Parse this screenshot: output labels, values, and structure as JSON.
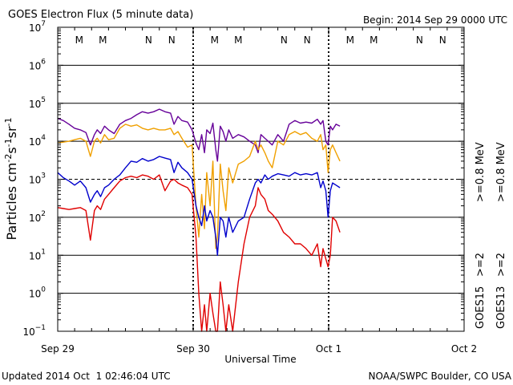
{
  "header": {
    "title": "GOES Electron Flux (5 minute data)",
    "begin": "Begin: 2014 Sep 29 0000 UTC"
  },
  "footer": {
    "updated": "Updated 2014 Oct  1 02:46:04 UTC",
    "credit": "NOAA/SWPC Boulder, CO USA"
  },
  "chart_data": {
    "type": "line",
    "title": "GOES Electron Flux (5 minute data)",
    "xlabel": "Universal Time",
    "ylabel": "Particles cm-2s-1sr-1",
    "yscale": "log",
    "ylim": [
      0.1,
      10000000
    ],
    "xlim": [
      0,
      72
    ],
    "x_unit": "hours since 2014 Sep 29 0000 UTC",
    "x_ticks": [
      {
        "x": 0,
        "label": "Sep 29"
      },
      {
        "x": 24,
        "label": "Sep 30"
      },
      {
        "x": 48,
        "label": "Oct 1"
      },
      {
        "x": 72,
        "label": "Oct 2"
      }
    ],
    "y_ticks": [
      {
        "exp": -1,
        "value": 0.1
      },
      {
        "exp": 0,
        "value": 1
      },
      {
        "exp": 1,
        "value": 10
      },
      {
        "exp": 2,
        "value": 100
      },
      {
        "exp": 3,
        "value": 1000
      },
      {
        "exp": 4,
        "value": 10000
      },
      {
        "exp": 5,
        "value": 100000
      },
      {
        "exp": 6,
        "value": 1000000
      },
      {
        "exp": 7,
        "value": 10000000
      }
    ],
    "grid": true,
    "dashed_threshold": 1000,
    "midnight_markers": [
      24,
      48
    ],
    "markers": [
      {
        "x": 3.8,
        "label": "M",
        "color": "#e00000"
      },
      {
        "x": 8.0,
        "label": "M",
        "color": "#0000cc"
      },
      {
        "x": 16.1,
        "label": "N",
        "color": "#e00000"
      },
      {
        "x": 20.2,
        "label": "N",
        "color": "#0000cc"
      },
      {
        "x": 27.8,
        "label": "M",
        "color": "#e00000"
      },
      {
        "x": 32.0,
        "label": "M",
        "color": "#0000cc"
      },
      {
        "x": 40.1,
        "label": "N",
        "color": "#e00000"
      },
      {
        "x": 44.2,
        "label": "N",
        "color": "#0000cc"
      },
      {
        "x": 51.8,
        "label": "M",
        "color": "#e00000"
      },
      {
        "x": 56.0,
        "label": "M",
        "color": "#0000cc"
      },
      {
        "x": 64.1,
        "label": "N",
        "color": "#e00000"
      },
      {
        "x": 68.2,
        "label": "N",
        "color": "#0000cc"
      }
    ],
    "right_legend": [
      {
        "group": "GOES15",
        "label": ">=2",
        "color": "#0000cc"
      },
      {
        "group": "GOES15",
        "label": ">=0.8 MeV",
        "color": "#660099"
      },
      {
        "group": "GOES13",
        "label": ">=2",
        "color": "#e00000"
      },
      {
        "group": "GOES13",
        "label": ">=0.8 MeV",
        "color": "#f0a000"
      }
    ],
    "series": [
      {
        "satellite": "GOES15",
        "energy": ">=0.8 MeV",
        "color": "#660099",
        "x": [
          0,
          1,
          2,
          3,
          4,
          5,
          5.8,
          6.5,
          7,
          7.6,
          8.3,
          9,
          10,
          11,
          12,
          13,
          14,
          15,
          16,
          17,
          18,
          19,
          20,
          20.6,
          21.3,
          22,
          23,
          23.8,
          24.5,
          25,
          25.5,
          26,
          26.4,
          27,
          27.5,
          28,
          28.3,
          28.8,
          29.3,
          29.8,
          30.3,
          31,
          32,
          33,
          34,
          35,
          35.5,
          36,
          36.7,
          37.3,
          38,
          39,
          40,
          41,
          42,
          43,
          44,
          45,
          46,
          46.6,
          47,
          47.5,
          47.9,
          48.3,
          48.7,
          49.3,
          50
        ],
        "y": [
          40000,
          35000,
          28000,
          22000,
          20000,
          17000,
          8000,
          15000,
          20000,
          16000,
          25000,
          20000,
          16000,
          28000,
          35000,
          40000,
          50000,
          60000,
          55000,
          60000,
          70000,
          60000,
          55000,
          28000,
          45000,
          35000,
          32000,
          20000,
          9000,
          6000,
          15000,
          5000,
          20000,
          16000,
          30000,
          6000,
          3000,
          25000,
          18000,
          10000,
          20000,
          12000,
          15000,
          13000,
          10000,
          8000,
          5000,
          15000,
          12000,
          10000,
          8000,
          15000,
          10000,
          28000,
          35000,
          30000,
          32000,
          30000,
          38000,
          28000,
          35000,
          10000,
          8000,
          25000,
          20000,
          28000,
          25000
        ]
      },
      {
        "satellite": "GOES13",
        "energy": ">=0.8 MeV",
        "color": "#f0a000",
        "x": [
          0,
          1,
          2,
          3,
          4,
          5,
          5.8,
          6.5,
          7,
          7.6,
          8.3,
          9,
          10,
          11,
          12,
          13,
          14,
          15,
          16,
          17,
          18,
          19,
          20,
          20.6,
          21.3,
          22,
          23,
          23.8,
          24.5,
          25,
          25.5,
          26,
          26.4,
          27,
          27.5,
          28,
          28.3,
          28.8,
          29.3,
          29.8,
          30.3,
          31,
          32,
          33,
          34,
          35,
          35.5,
          36,
          36.7,
          37.3,
          38,
          39,
          40,
          41,
          42,
          43,
          44,
          45,
          46,
          46.6,
          47,
          47.5,
          47.9,
          48.3,
          48.7,
          49.3,
          50
        ],
        "y": [
          9000,
          9500,
          10000,
          11000,
          12000,
          10000,
          4000,
          10000,
          12000,
          9000,
          15000,
          11000,
          12000,
          22000,
          28000,
          25000,
          27000,
          22000,
          20000,
          22000,
          20000,
          20000,
          22000,
          15000,
          18000,
          12000,
          7000,
          8000,
          200,
          30,
          400,
          50,
          1500,
          200,
          3000,
          15,
          30,
          2500,
          500,
          150,
          2000,
          800,
          2500,
          3000,
          4000,
          10000,
          6000,
          8000,
          5000,
          3000,
          2000,
          10000,
          8000,
          15000,
          18000,
          15000,
          17000,
          12000,
          10000,
          15000,
          6000,
          8000,
          1500,
          6000,
          8000,
          5000,
          3000
        ]
      },
      {
        "satellite": "GOES15",
        "energy": ">=2 MeV",
        "color": "#0000cc",
        "x": [
          0,
          1,
          2,
          3,
          4,
          5,
          5.8,
          6.5,
          7,
          7.6,
          8.3,
          9,
          10,
          11,
          12,
          13,
          14,
          15,
          16,
          17,
          18,
          19,
          20,
          20.6,
          21.3,
          22,
          23,
          23.8,
          24.5,
          25,
          25.5,
          26,
          26.4,
          27,
          27.5,
          28,
          28.3,
          28.8,
          29.3,
          29.8,
          30.3,
          31,
          32,
          33,
          34,
          35,
          35.5,
          36,
          36.7,
          37.3,
          38,
          39,
          40,
          41,
          42,
          43,
          44,
          45,
          46,
          46.6,
          47,
          47.5,
          47.9,
          48.3,
          48.7,
          49.3,
          50
        ],
        "y": [
          1500,
          1100,
          900,
          700,
          900,
          600,
          250,
          400,
          500,
          350,
          600,
          700,
          1000,
          1300,
          2000,
          3000,
          2800,
          3500,
          3000,
          3300,
          4000,
          3600,
          3300,
          1500,
          2800,
          2000,
          1500,
          1000,
          200,
          100,
          60,
          200,
          80,
          150,
          100,
          30,
          10,
          100,
          80,
          30,
          100,
          40,
          80,
          100,
          300,
          800,
          1000,
          800,
          1300,
          1000,
          1200,
          1400,
          1300,
          1200,
          1500,
          1300,
          1400,
          1300,
          1500,
          600,
          900,
          500,
          100,
          500,
          800,
          700,
          600
        ]
      },
      {
        "satellite": "GOES13",
        "energy": ">=2 MeV",
        "color": "#e00000",
        "x": [
          0,
          1,
          2,
          3,
          4,
          5,
          5.8,
          6.5,
          7,
          7.6,
          8.3,
          9,
          10,
          11,
          12,
          13,
          14,
          15,
          16,
          17,
          18,
          19,
          20,
          20.6,
          21.3,
          22,
          23,
          23.8,
          24.5,
          25,
          25.5,
          26,
          26.4,
          27,
          27.5,
          28,
          28.3,
          28.8,
          29.3,
          29.8,
          30.3,
          31,
          32,
          33,
          34,
          35,
          35.5,
          36,
          36.7,
          37.3,
          38,
          39,
          40,
          41,
          42,
          43,
          44,
          45,
          46,
          46.6,
          47,
          47.5,
          47.9,
          48.3,
          48.7,
          49.3,
          50
        ],
        "y": [
          180,
          170,
          160,
          170,
          180,
          150,
          25,
          150,
          200,
          160,
          300,
          400,
          600,
          900,
          1100,
          1200,
          1100,
          1300,
          1200,
          1000,
          1300,
          500,
          900,
          1000,
          800,
          700,
          600,
          400,
          30,
          1,
          0.1,
          0.5,
          0.1,
          1,
          0.3,
          0.1,
          0.1,
          2,
          0.5,
          0.1,
          0.5,
          0.1,
          2,
          20,
          100,
          200,
          600,
          400,
          300,
          150,
          120,
          80,
          40,
          30,
          20,
          20,
          15,
          10,
          20,
          5,
          15,
          8,
          5,
          10,
          100,
          80,
          40
        ]
      }
    ]
  }
}
